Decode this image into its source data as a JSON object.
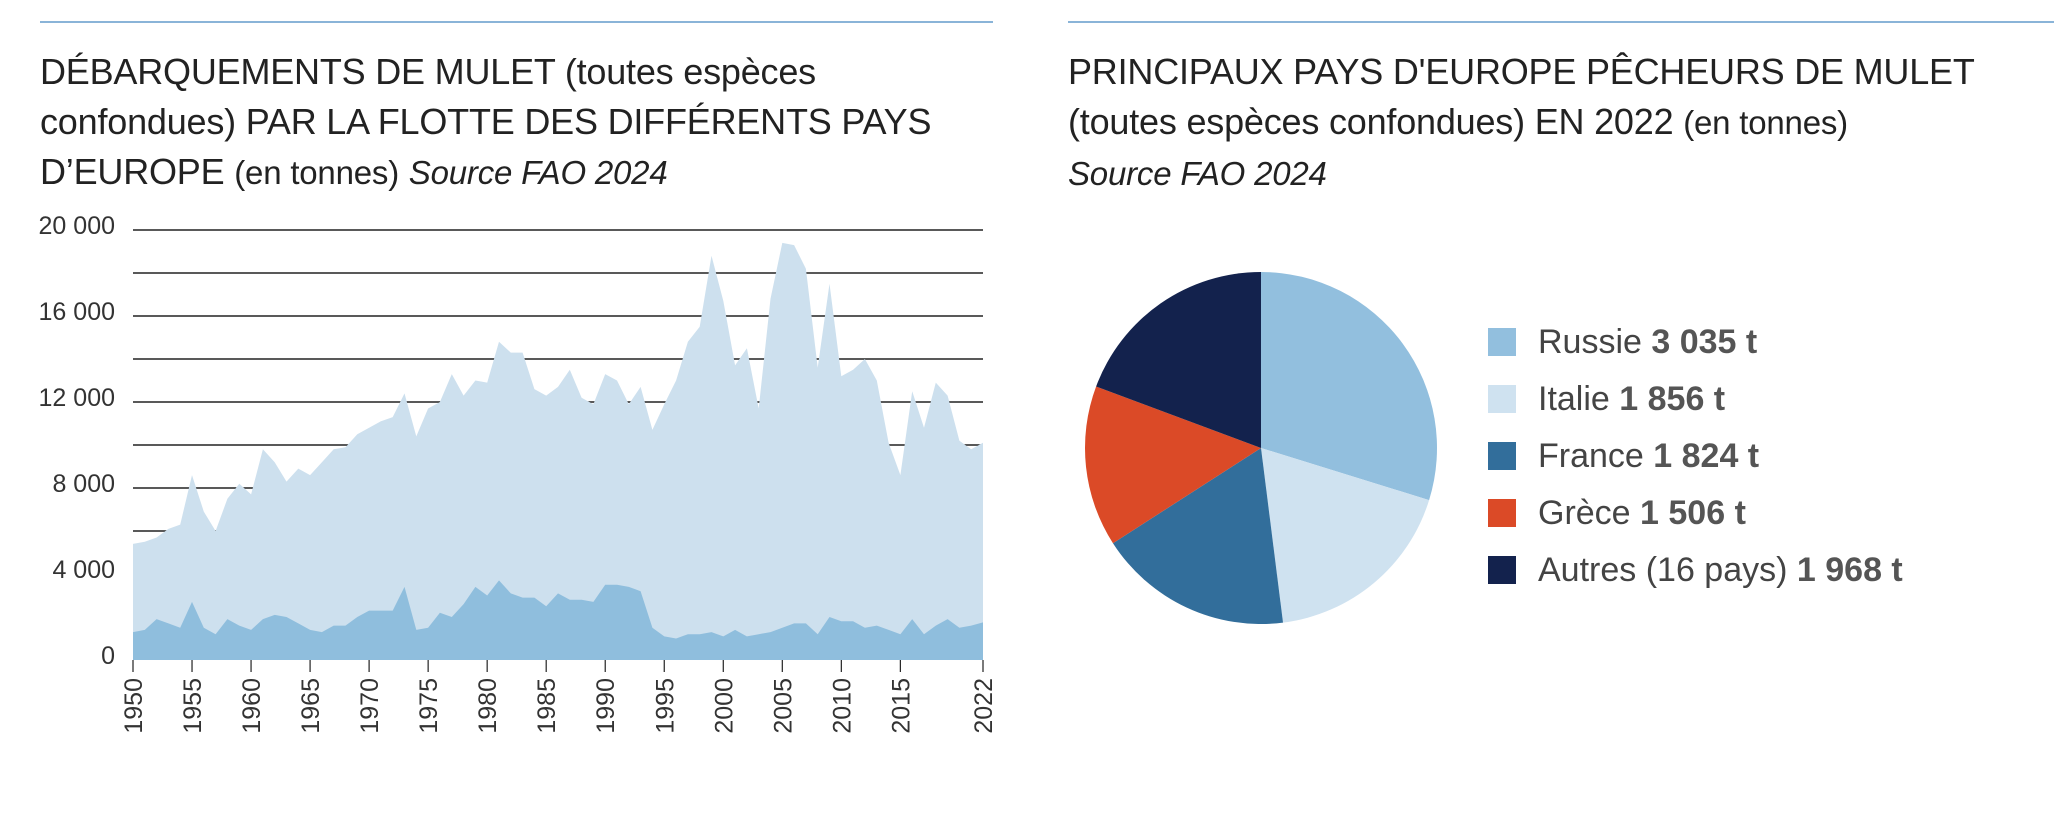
{
  "left_chart": {
    "title": "DÉBARQUEMENTS DE MULET (toutes espèces confondues) PAR LA FLOTTE DES DIFFÉRENTS PAYS D’EUROPE",
    "unit": "(en tonnes)",
    "source": "Source FAO 2024"
  },
  "right_chart": {
    "title": "PRINCIPAUX PAYS D'EUROPE PÊCHEURS DE MULET (toutes espèces confondues) EN 2022",
    "unit": "(en tonnes)",
    "source": "Source FAO 2024"
  },
  "chart_data": [
    {
      "type": "area",
      "title": "DÉBARQUEMENTS DE MULET (toutes espèces confondues) PAR LA FLOTTE DES DIFFÉRENTS PAYS D’EUROPE (en tonnes)",
      "subtitle": "Source FAO 2024",
      "xlabel": "",
      "ylabel": "",
      "x": [
        1950,
        1951,
        1952,
        1953,
        1954,
        1955,
        1956,
        1957,
        1958,
        1959,
        1960,
        1961,
        1962,
        1963,
        1964,
        1965,
        1966,
        1967,
        1968,
        1969,
        1970,
        1971,
        1972,
        1973,
        1974,
        1975,
        1976,
        1977,
        1978,
        1979,
        1980,
        1981,
        1982,
        1983,
        1984,
        1985,
        1986,
        1987,
        1988,
        1989,
        1990,
        1991,
        1992,
        1993,
        1994,
        1995,
        1996,
        1997,
        1998,
        1999,
        2000,
        2001,
        2002,
        2003,
        2004,
        2005,
        2006,
        2007,
        2008,
        2009,
        2010,
        2011,
        2012,
        2013,
        2014,
        2015,
        2016,
        2017,
        2018,
        2019,
        2020,
        2021,
        2022
      ],
      "xticks": [
        "1950",
        "1955",
        "1960",
        "1965",
        "1970",
        "1975",
        "1980",
        "1985",
        "1990",
        "1995",
        "2000",
        "2005",
        "2010",
        "2015",
        "2022"
      ],
      "yticks": [
        "0",
        "4 000",
        "8 000",
        "12 000",
        "16 000",
        "20 000"
      ],
      "ylim": [
        0,
        20000
      ],
      "grid": true,
      "series": [
        {
          "color": "#cde0ee",
          "values": [
            5400,
            5500,
            5700,
            6100,
            6300,
            8600,
            6900,
            6000,
            7500,
            8200,
            7700,
            9800,
            9200,
            8300,
            8900,
            8600,
            9200,
            9800,
            9900,
            10500,
            10800,
            11100,
            11300,
            12400,
            10400,
            11700,
            12000,
            13300,
            12300,
            13000,
            12900,
            14800,
            14300,
            14300,
            12600,
            12300,
            12700,
            13500,
            12200,
            11900,
            13300,
            13000,
            11900,
            12700,
            10700,
            11900,
            13000,
            14800,
            15500,
            18800,
            16700,
            13700,
            14500,
            11700,
            16800,
            19400,
            19300,
            18200,
            13600,
            17500,
            13200,
            13500,
            14000,
            13000,
            10100,
            8600,
            12500,
            10800,
            12900,
            12300,
            10200,
            9800,
            10100
          ]
        },
        {
          "color": "#8fbedd",
          "values": [
            1300,
            1400,
            1900,
            1700,
            1500,
            2700,
            1500,
            1200,
            1900,
            1600,
            1400,
            1900,
            2100,
            2000,
            1700,
            1400,
            1300,
            1600,
            1600,
            2000,
            2300,
            2300,
            2300,
            3400,
            1400,
            1500,
            2200,
            2000,
            2600,
            3400,
            3000,
            3700,
            3100,
            2900,
            2900,
            2500,
            3100,
            2800,
            2800,
            2700,
            3500,
            3500,
            3400,
            3200,
            1500,
            1100,
            1000,
            1200,
            1200,
            1300,
            1100,
            1400,
            1100,
            1200,
            1300,
            1500,
            1700,
            1700,
            1200,
            2000,
            1800,
            1800,
            1500,
            1600,
            1400,
            1200,
            1900,
            1200,
            1600,
            1900,
            1500,
            1600,
            1750
          ]
        }
      ]
    },
    {
      "type": "pie",
      "title": "PRINCIPAUX PAYS D'EUROPE PÊCHEURS DE MULET (toutes espèces confondues) EN 2022 (en tonnes)",
      "subtitle": "Source FAO 2024",
      "slices": [
        {
          "label": "Russie",
          "value": 3035,
          "value_label": "3 035 t",
          "color": "#92bfde"
        },
        {
          "label": "Italie",
          "value": 1856,
          "value_label": "1 856 t",
          "color": "#cfe2f0"
        },
        {
          "label": "France",
          "value": 1824,
          "value_label": "1 824 t",
          "color": "#326e9b"
        },
        {
          "label": "Grèce",
          "value": 1506,
          "value_label": "1 506 t",
          "color": "#db4a27"
        },
        {
          "label": "Autres (16 pays)",
          "value": 1968,
          "value_label": "1 968 t",
          "color": "#13224d"
        }
      ]
    }
  ]
}
